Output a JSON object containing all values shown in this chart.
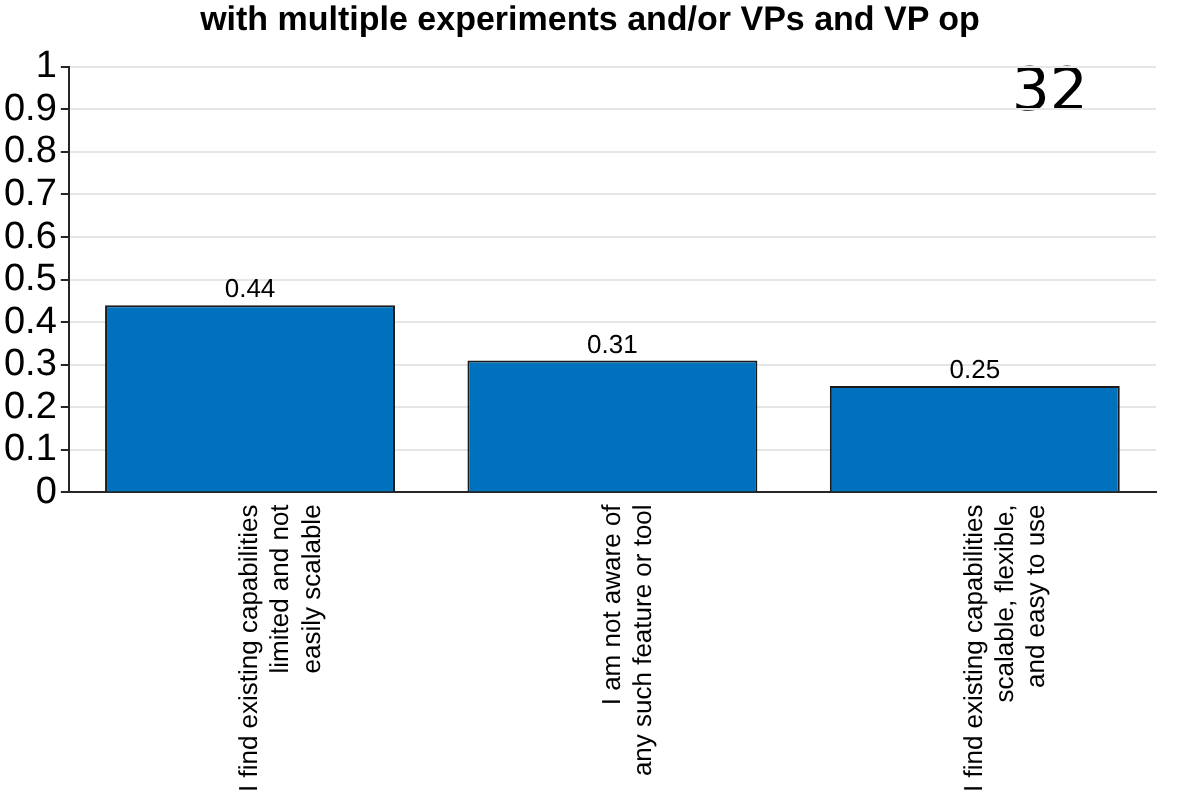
{
  "chart_data": {
    "type": "bar",
    "title": "with multiple experiments and/or VPs and VP op",
    "categories": [
      "I find existing capabilities\nlimited and not\neasily scalable",
      "I am not aware of\nany such feature or tool",
      "I find existing capabilities\nscalable, flexible,\nand easy to use"
    ],
    "values": [
      0.44,
      0.31,
      0.25
    ],
    "color": "#0072bd",
    "ylim": [
      0,
      1
    ],
    "yticks": [
      0,
      0.1,
      0.2,
      0.3,
      0.4,
      0.5,
      0.6,
      0.7,
      0.8,
      0.9,
      1
    ],
    "grid": "y",
    "data_labels": true,
    "annotations": [
      "32"
    ]
  }
}
